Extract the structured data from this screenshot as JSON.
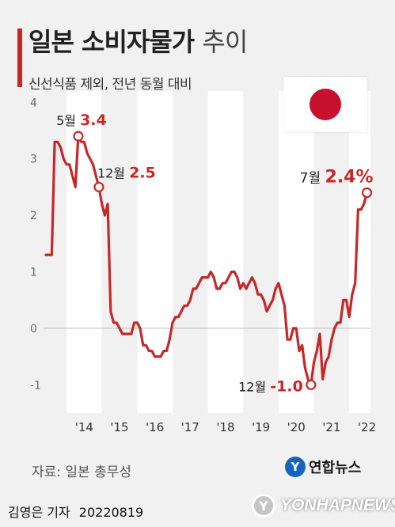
{
  "header": {
    "title_main": "일본 소비자물가",
    "title_sub": "추이",
    "subtitle": "신선식품 제외, 전년 동월 대비"
  },
  "footer": {
    "source": "자료: 일본 총무성",
    "brand": "연합뉴스",
    "byline": "김영은 기자",
    "date": "20220819",
    "watermark": "YONHAPNEWS"
  },
  "colors": {
    "line": "#c62828",
    "band": "#ffffff",
    "background": "#f1f1f1",
    "zero_line": "#bdbdbd"
  },
  "icons": {
    "flag": "japan-flag-icon",
    "brand_logo": "yonhap-logo-icon"
  },
  "chart_data": {
    "type": "line",
    "ylim": [
      -1.5,
      4.2
    ],
    "yticks": [
      4,
      3,
      2,
      1,
      0,
      -1
    ],
    "ytick_labels": [
      "4",
      "3",
      "2",
      "1",
      "0",
      "-1"
    ],
    "xlim": [
      2013.35,
      2022.6
    ],
    "year_labels": [
      {
        "label": "'14",
        "year": 2014
      },
      {
        "label": "'15",
        "year": 2015
      },
      {
        "label": "'16",
        "year": 2016
      },
      {
        "label": "'17",
        "year": 2017
      },
      {
        "label": "'18",
        "year": 2018
      },
      {
        "label": "'19",
        "year": 2019
      },
      {
        "label": "'20",
        "year": 2020
      },
      {
        "label": "'21",
        "year": 2021
      },
      {
        "label": "'22",
        "year": 2022
      }
    ],
    "series": [
      {
        "values": [
          [
            "2013-06",
            1.3
          ],
          [
            "2013-07",
            1.3
          ],
          [
            "2013-08",
            1.3
          ],
          [
            "2013-09",
            3.3
          ],
          [
            "2013-10",
            3.3
          ],
          [
            "2013-11",
            3.2
          ],
          [
            "2013-12",
            3.0
          ],
          [
            "2014-01",
            2.9
          ],
          [
            "2014-02",
            2.9
          ],
          [
            "2014-03",
            2.7
          ],
          [
            "2014-04",
            2.5
          ],
          [
            "2014-05",
            3.4
          ],
          [
            "2014-06",
            3.3
          ],
          [
            "2014-07",
            3.3
          ],
          [
            "2014-08",
            3.1
          ],
          [
            "2014-09",
            3.0
          ],
          [
            "2014-10",
            2.9
          ],
          [
            "2014-11",
            2.7
          ],
          [
            "2014-12",
            2.5
          ],
          [
            "2015-01",
            2.2
          ],
          [
            "2015-02",
            2.0
          ],
          [
            "2015-03",
            2.2
          ],
          [
            "2015-04",
            0.3
          ],
          [
            "2015-05",
            0.1
          ],
          [
            "2015-06",
            0.1
          ],
          [
            "2015-07",
            0.0
          ],
          [
            "2015-08",
            -0.1
          ],
          [
            "2015-09",
            -0.1
          ],
          [
            "2015-10",
            -0.1
          ],
          [
            "2015-11",
            -0.1
          ],
          [
            "2015-12",
            0.1
          ],
          [
            "2016-01",
            0.1
          ],
          [
            "2016-02",
            0.0
          ],
          [
            "2016-03",
            -0.3
          ],
          [
            "2016-04",
            -0.3
          ],
          [
            "2016-05",
            -0.4
          ],
          [
            "2016-06",
            -0.4
          ],
          [
            "2016-07",
            -0.5
          ],
          [
            "2016-08",
            -0.5
          ],
          [
            "2016-09",
            -0.5
          ],
          [
            "2016-10",
            -0.4
          ],
          [
            "2016-11",
            -0.4
          ],
          [
            "2016-12",
            -0.2
          ],
          [
            "2017-01",
            0.1
          ],
          [
            "2017-02",
            0.2
          ],
          [
            "2017-03",
            0.2
          ],
          [
            "2017-04",
            0.3
          ],
          [
            "2017-05",
            0.4
          ],
          [
            "2017-06",
            0.4
          ],
          [
            "2017-07",
            0.5
          ],
          [
            "2017-08",
            0.7
          ],
          [
            "2017-09",
            0.7
          ],
          [
            "2017-10",
            0.8
          ],
          [
            "2017-11",
            0.9
          ],
          [
            "2017-12",
            0.9
          ],
          [
            "2018-01",
            0.9
          ],
          [
            "2018-02",
            1.0
          ],
          [
            "2018-03",
            0.9
          ],
          [
            "2018-04",
            0.7
          ],
          [
            "2018-05",
            0.7
          ],
          [
            "2018-06",
            0.8
          ],
          [
            "2018-07",
            0.8
          ],
          [
            "2018-08",
            0.9
          ],
          [
            "2018-09",
            1.0
          ],
          [
            "2018-10",
            1.0
          ],
          [
            "2018-11",
            0.9
          ],
          [
            "2018-12",
            0.7
          ],
          [
            "2019-01",
            0.8
          ],
          [
            "2019-02",
            0.7
          ],
          [
            "2019-03",
            0.8
          ],
          [
            "2019-04",
            0.9
          ],
          [
            "2019-05",
            0.8
          ],
          [
            "2019-06",
            0.6
          ],
          [
            "2019-07",
            0.6
          ],
          [
            "2019-08",
            0.5
          ],
          [
            "2019-09",
            0.3
          ],
          [
            "2019-10",
            0.4
          ],
          [
            "2019-11",
            0.5
          ],
          [
            "2019-12",
            0.7
          ],
          [
            "2020-01",
            0.8
          ],
          [
            "2020-02",
            0.6
          ],
          [
            "2020-03",
            0.4
          ],
          [
            "2020-04",
            -0.2
          ],
          [
            "2020-05",
            -0.2
          ],
          [
            "2020-06",
            0.0
          ],
          [
            "2020-07",
            0.0
          ],
          [
            "2020-08",
            -0.4
          ],
          [
            "2020-09",
            -0.3
          ],
          [
            "2020-10",
            -0.7
          ],
          [
            "2020-11",
            -0.9
          ],
          [
            "2020-12",
            -1.0
          ],
          [
            "2021-01",
            -0.6
          ],
          [
            "2021-02",
            -0.4
          ],
          [
            "2021-03",
            -0.1
          ],
          [
            "2021-04",
            -0.9
          ],
          [
            "2021-05",
            -0.6
          ],
          [
            "2021-06",
            -0.5
          ],
          [
            "2021-07",
            -0.2
          ],
          [
            "2021-08",
            0.0
          ],
          [
            "2021-09",
            0.1
          ],
          [
            "2021-10",
            0.1
          ],
          [
            "2021-11",
            0.5
          ],
          [
            "2021-12",
            0.5
          ],
          [
            "2022-01",
            0.2
          ],
          [
            "2022-02",
            0.6
          ],
          [
            "2022-03",
            0.8
          ],
          [
            "2022-04",
            2.1
          ],
          [
            "2022-05",
            2.1
          ],
          [
            "2022-06",
            2.2
          ],
          [
            "2022-07",
            2.4
          ]
        ]
      }
    ],
    "annotations": [
      {
        "date": "2014-05",
        "month_label": "5월",
        "value_label": "3.4",
        "value": 3.4
      },
      {
        "date": "2014-12",
        "month_label": "12월",
        "value_label": "2.5",
        "value": 2.5
      },
      {
        "date": "2020-12",
        "month_label": "12월",
        "value_label": "-1.0",
        "value": -1.0
      },
      {
        "date": "2022-07",
        "month_label": "7월",
        "value_label": "2.4%",
        "value": 2.4
      }
    ]
  }
}
